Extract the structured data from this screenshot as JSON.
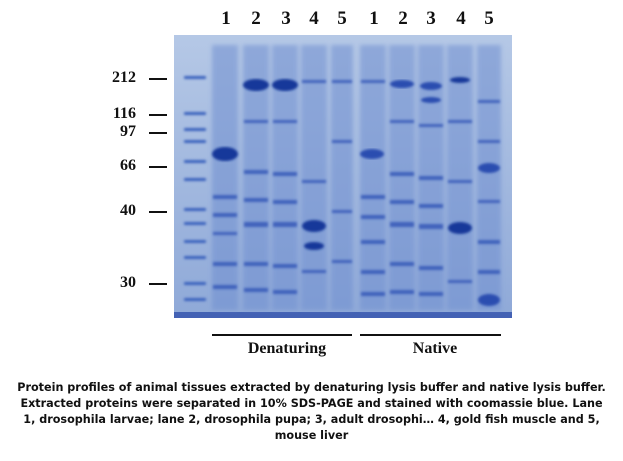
{
  "gel": {
    "lane_numbers": [
      "1",
      "2",
      "3",
      "4",
      "5",
      "1",
      "2",
      "3",
      "4",
      "5"
    ],
    "marker_labels": [
      "212",
      "116",
      "97",
      "66",
      "40",
      "30"
    ],
    "groups": [
      {
        "label": "Denaturing"
      },
      {
        "label": "Native"
      }
    ],
    "colors": {
      "gel_background": "#9fb7dc",
      "band_dark": "#1b3f9c",
      "band_medium": "#4f75c7"
    }
  },
  "caption": {
    "lines": [
      "Protein profiles of animal tissues extracted by denaturing lysis buffer and native lysis buffer.",
      "Extracted proteins were separated in 10% SDS-PAGE and stained with coomassie blue. Lane",
      "1, drosophila larvae; lane 2, drosophila pupa; 3, adult drosophi… 4, gold fish muscle and 5,",
      "mouse liver"
    ]
  }
}
